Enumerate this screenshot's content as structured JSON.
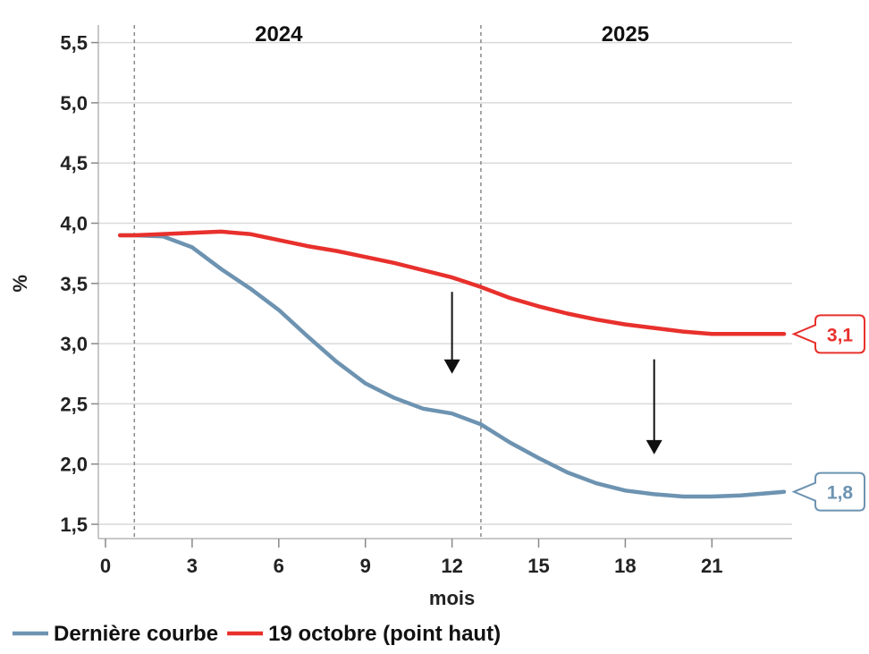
{
  "chart_data": {
    "type": "line",
    "xlabel": "mois",
    "ylabel": "%",
    "xlim": [
      -0.5,
      24
    ],
    "ylim": [
      1.45,
      5.6
    ],
    "x_ticks": [
      0,
      3,
      6,
      9,
      12,
      15,
      18,
      21
    ],
    "x_tick_labels": [
      "0",
      "3",
      "6",
      "9",
      "12",
      "15",
      "18",
      "21"
    ],
    "y_ticks": [
      1.5,
      2.0,
      2.5,
      3.0,
      3.5,
      4.0,
      4.5,
      5.0,
      5.5
    ],
    "y_tick_labels": [
      "1,5",
      "2,0",
      "2,5",
      "3,0",
      "3,5",
      "4,0",
      "4,5",
      "5,0",
      "5,5"
    ],
    "grid": "horizontal",
    "period_dividers": [
      {
        "x": 1,
        "label": "2024",
        "label_x": 6
      },
      {
        "x": 13,
        "label": "2025",
        "label_x": 18
      }
    ],
    "series": [
      {
        "name": "Dernière courbe",
        "color": "#6d93b1",
        "x": [
          0.5,
          1,
          2,
          3,
          4,
          5,
          6,
          7,
          8,
          9,
          10,
          11,
          12,
          13,
          14,
          15,
          16,
          17,
          18,
          19,
          20,
          21,
          22,
          23.5
        ],
        "values": [
          3.9,
          3.9,
          3.89,
          3.8,
          3.62,
          3.46,
          3.28,
          3.06,
          2.85,
          2.67,
          2.55,
          2.46,
          2.42,
          2.33,
          2.18,
          2.05,
          1.93,
          1.84,
          1.78,
          1.75,
          1.73,
          1.73,
          1.74,
          1.77
        ],
        "end_label": "1,8"
      },
      {
        "name": "19 octobre (point haut)",
        "color": "#e8302c",
        "x": [
          0.5,
          1,
          2,
          3,
          4,
          5,
          6,
          7,
          8,
          9,
          10,
          11,
          12,
          13,
          14,
          15,
          16,
          17,
          18,
          19,
          20,
          21,
          22,
          23.5
        ],
        "values": [
          3.9,
          3.9,
          3.91,
          3.92,
          3.93,
          3.91,
          3.86,
          3.81,
          3.77,
          3.72,
          3.67,
          3.61,
          3.55,
          3.47,
          3.38,
          3.31,
          3.25,
          3.2,
          3.16,
          3.13,
          3.1,
          3.08,
          3.08,
          3.08
        ],
        "end_label": "3,1"
      }
    ],
    "annotations": [
      {
        "type": "arrow-down",
        "x": 12,
        "y_from": 3.43,
        "y_to": 2.75
      },
      {
        "type": "arrow-down",
        "x": 19,
        "y_from": 2.87,
        "y_to": 2.08
      }
    ],
    "legend_position": "bottom-left"
  }
}
